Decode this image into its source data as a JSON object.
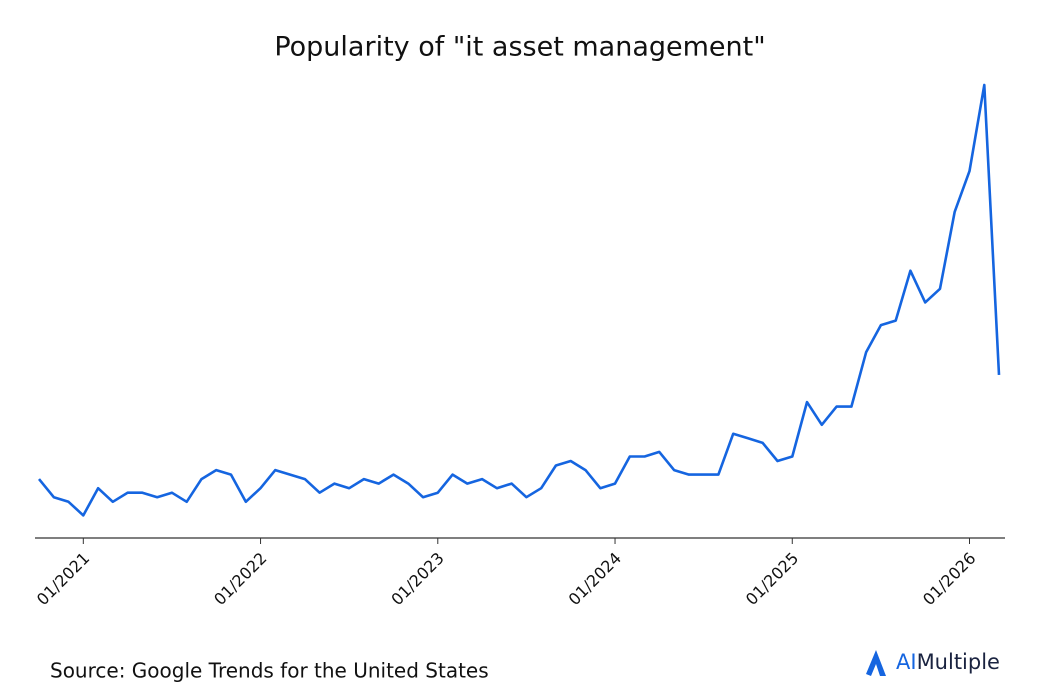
{
  "chart_data": {
    "type": "line",
    "title": "Popularity of \"it asset management\"",
    "source": "Source: Google Trends for the United States",
    "brand": {
      "highlight": "AI",
      "rest": "Multiple"
    },
    "x": [
      "10/2020",
      "11/2020",
      "12/2020",
      "01/2021",
      "02/2021",
      "03/2021",
      "04/2021",
      "05/2021",
      "06/2021",
      "07/2021",
      "08/2021",
      "09/2021",
      "10/2021",
      "11/2021",
      "12/2021",
      "01/2022",
      "02/2022",
      "03/2022",
      "04/2022",
      "05/2022",
      "06/2022",
      "07/2022",
      "08/2022",
      "09/2022",
      "10/2022",
      "11/2022",
      "12/2022",
      "01/2023",
      "02/2023",
      "03/2023",
      "04/2023",
      "05/2023",
      "06/2023",
      "07/2023",
      "08/2023",
      "09/2023",
      "10/2023",
      "11/2023",
      "12/2023",
      "01/2024",
      "02/2024",
      "03/2024",
      "04/2024",
      "05/2024",
      "06/2024",
      "07/2024",
      "08/2024",
      "09/2024",
      "10/2024",
      "11/2024",
      "12/2024",
      "01/2025",
      "02/2025",
      "03/2025",
      "04/2025",
      "05/2025",
      "06/2025",
      "07/2025",
      "08/2025",
      "09/2025",
      "10/2025",
      "11/2025",
      "12/2025",
      "01/2026",
      "02/2026",
      "03/2026"
    ],
    "series": [
      {
        "color": "#1565e0",
        "values": [
          13,
          9,
          8,
          5,
          11,
          8,
          10,
          10,
          9,
          10,
          8,
          13,
          15,
          14,
          8,
          11,
          15,
          14,
          13,
          10,
          12,
          11,
          13,
          12,
          14,
          12,
          9,
          10,
          14,
          12,
          13,
          11,
          12,
          9,
          11,
          16,
          17,
          15,
          11,
          12,
          18,
          18,
          19,
          15,
          14,
          14,
          14,
          23,
          22,
          21,
          17,
          18,
          30,
          25,
          29,
          29,
          41,
          47,
          48,
          59,
          52,
          55,
          72,
          81,
          100,
          36
        ]
      }
    ],
    "ylim": [
      0,
      100
    ],
    "xticks": [
      "01/2021",
      "01/2022",
      "01/2023",
      "01/2024",
      "01/2025",
      "01/2026"
    ]
  }
}
